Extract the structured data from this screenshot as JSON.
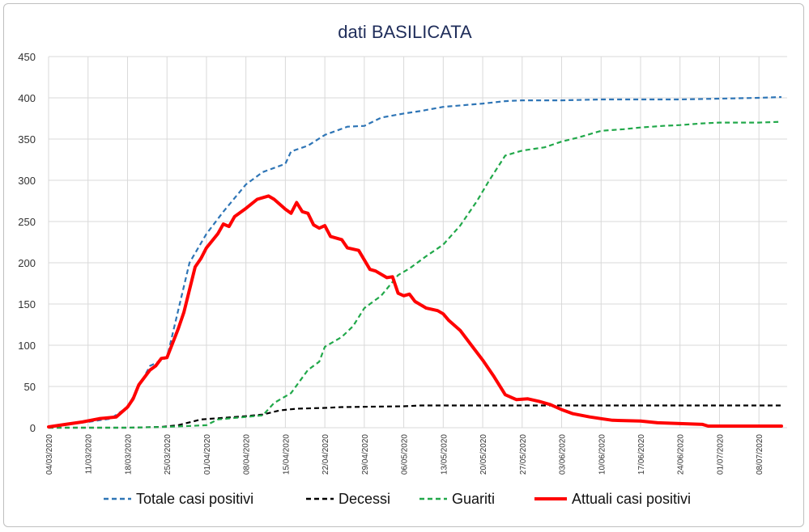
{
  "chart_data": {
    "type": "line",
    "title": "dati BASILICATA",
    "xlabel": "",
    "ylabel": "",
    "ylim": [
      0,
      450
    ],
    "yticks": [
      0,
      50,
      100,
      150,
      200,
      250,
      300,
      350,
      400,
      450
    ],
    "grid": true,
    "legend_position": "bottom",
    "x_start": "04/03/2020",
    "x_tick_labels": [
      "04/03/2020",
      "11/03/2020",
      "18/03/2020",
      "25/03/2020",
      "01/04/2020",
      "08/04/2020",
      "15/04/2020",
      "22/04/2020",
      "29/04/2020",
      "06/05/2020",
      "13/05/2020",
      "20/05/2020",
      "27/05/2020",
      "03/06/2020",
      "10/06/2020",
      "17/06/2020",
      "24/06/2020",
      "01/07/2020",
      "08/07/2020"
    ],
    "series": [
      {
        "name": "Totale casi positivi",
        "color": "#2e75b6",
        "style": "dashed",
        "values": [
          1,
          2,
          3,
          4,
          5,
          6,
          7,
          8,
          9,
          10,
          11,
          12,
          14,
          18,
          25,
          35,
          50,
          60,
          70,
          75,
          85,
          85,
          100,
          120,
          140,
          170,
          200,
          215,
          230,
          245,
          260,
          265,
          280,
          290,
          295,
          300,
          305,
          310,
          312,
          315,
          318,
          320,
          335,
          338,
          340,
          342,
          345,
          350,
          355,
          358,
          362,
          365,
          365,
          365,
          366,
          368,
          372,
          376,
          378,
          380,
          381,
          381,
          382,
          385,
          387,
          389,
          389,
          390,
          391,
          392,
          393,
          393,
          395,
          396,
          396,
          397,
          397,
          397,
          397,
          397,
          397,
          397,
          397,
          397,
          397,
          398,
          398,
          398,
          398,
          398,
          398,
          398,
          398,
          398,
          398,
          398,
          398,
          398,
          398,
          398,
          398,
          399,
          399,
          399,
          399,
          399,
          399,
          399,
          400,
          400,
          401,
          401
        ],
        "points": [
          [
            "04/03/2020",
            1
          ],
          [
            "08/03/2020",
            5
          ],
          [
            "11/03/2020",
            7
          ],
          [
            "15/03/2020",
            11
          ],
          [
            "18/03/2020",
            25
          ],
          [
            "22/03/2020",
            75
          ],
          [
            "25/03/2020",
            85
          ],
          [
            "29/03/2020",
            200
          ],
          [
            "01/04/2020",
            235
          ],
          [
            "04/04/2020",
            262
          ],
          [
            "08/04/2020",
            295
          ],
          [
            "11/04/2020",
            310
          ],
          [
            "15/04/2020",
            320
          ],
          [
            "16/04/2020",
            335
          ],
          [
            "19/04/2020",
            342
          ],
          [
            "22/04/2020",
            355
          ],
          [
            "26/04/2020",
            365
          ],
          [
            "29/04/2020",
            366
          ],
          [
            "02/05/2020",
            376
          ],
          [
            "06/05/2020",
            381
          ],
          [
            "09/05/2020",
            384
          ],
          [
            "13/05/2020",
            389
          ],
          [
            "20/05/2020",
            393
          ],
          [
            "24/05/2020",
            396
          ],
          [
            "27/05/2020",
            397
          ],
          [
            "03/06/2020",
            397
          ],
          [
            "10/06/2020",
            398
          ],
          [
            "17/06/2020",
            398
          ],
          [
            "24/06/2020",
            398
          ],
          [
            "01/07/2020",
            399
          ],
          [
            "08/07/2020",
            400
          ],
          [
            "12/07/2020",
            401
          ]
        ]
      },
      {
        "name": "Decessi",
        "color": "#000000",
        "style": "dashed",
        "points": [
          [
            "04/03/2020",
            0
          ],
          [
            "11/03/2020",
            0
          ],
          [
            "18/03/2020",
            0
          ],
          [
            "24/03/2020",
            1
          ],
          [
            "27/03/2020",
            3
          ],
          [
            "31/03/2020",
            10
          ],
          [
            "04/04/2020",
            12
          ],
          [
            "08/04/2020",
            14
          ],
          [
            "11/04/2020",
            16
          ],
          [
            "14/04/2020",
            21
          ],
          [
            "17/04/2020",
            23
          ],
          [
            "22/04/2020",
            24
          ],
          [
            "25/04/2020",
            25
          ],
          [
            "06/05/2020",
            26
          ],
          [
            "09/05/2020",
            27
          ],
          [
            "20/05/2020",
            27
          ],
          [
            "03/06/2020",
            27
          ],
          [
            "12/07/2020",
            27
          ]
        ]
      },
      {
        "name": "Guariti",
        "color": "#21a84a",
        "style": "dashed",
        "points": [
          [
            "04/03/2020",
            0
          ],
          [
            "11/03/2020",
            0
          ],
          [
            "18/03/2020",
            0
          ],
          [
            "25/03/2020",
            1
          ],
          [
            "01/04/2020",
            3
          ],
          [
            "03/04/2020",
            10
          ],
          [
            "08/04/2020",
            13
          ],
          [
            "11/04/2020",
            15
          ],
          [
            "13/04/2020",
            30
          ],
          [
            "16/04/2020",
            42
          ],
          [
            "19/04/2020",
            70
          ],
          [
            "21/04/2020",
            80
          ],
          [
            "22/04/2020",
            98
          ],
          [
            "25/04/2020",
            110
          ],
          [
            "27/04/2020",
            123
          ],
          [
            "29/04/2020",
            145
          ],
          [
            "02/05/2020",
            160
          ],
          [
            "05/05/2020",
            185
          ],
          [
            "07/05/2020",
            193
          ],
          [
            "10/05/2020",
            208
          ],
          [
            "13/05/2020",
            222
          ],
          [
            "16/05/2020",
            245
          ],
          [
            "19/05/2020",
            275
          ],
          [
            "21/05/2020",
            298
          ],
          [
            "24/05/2020",
            330
          ],
          [
            "27/05/2020",
            336
          ],
          [
            "31/05/2020",
            340
          ],
          [
            "03/06/2020",
            347
          ],
          [
            "06/06/2020",
            352
          ],
          [
            "10/06/2020",
            360
          ],
          [
            "14/06/2020",
            362
          ],
          [
            "17/06/2020",
            364
          ],
          [
            "21/06/2020",
            366
          ],
          [
            "24/06/2020",
            367
          ],
          [
            "28/06/2020",
            369
          ],
          [
            "01/07/2020",
            370
          ],
          [
            "05/07/2020",
            370
          ],
          [
            "08/07/2020",
            370
          ],
          [
            "12/07/2020",
            371
          ]
        ]
      },
      {
        "name": "Attuali casi positivi",
        "color": "#ff0000",
        "style": "solid",
        "points": [
          [
            "04/03/2020",
            1
          ],
          [
            "07/03/2020",
            4
          ],
          [
            "10/03/2020",
            7
          ],
          [
            "13/03/2020",
            11
          ],
          [
            "16/03/2020",
            13
          ],
          [
            "18/03/2020",
            25
          ],
          [
            "19/03/2020",
            35
          ],
          [
            "20/03/2020",
            52
          ],
          [
            "22/03/2020",
            70
          ],
          [
            "23/03/2020",
            75
          ],
          [
            "24/03/2020",
            84
          ],
          [
            "25/03/2020",
            85
          ],
          [
            "27/03/2020",
            120
          ],
          [
            "28/03/2020",
            140
          ],
          [
            "30/03/2020",
            195
          ],
          [
            "31/03/2020",
            205
          ],
          [
            "01/04/2020",
            218
          ],
          [
            "03/04/2020",
            235
          ],
          [
            "04/04/2020",
            247
          ],
          [
            "05/04/2020",
            244
          ],
          [
            "06/04/2020",
            256
          ],
          [
            "08/04/2020",
            266
          ],
          [
            "10/04/2020",
            277
          ],
          [
            "12/04/2020",
            281
          ],
          [
            "13/04/2020",
            277
          ],
          [
            "15/04/2020",
            265
          ],
          [
            "16/04/2020",
            260
          ],
          [
            "17/04/2020",
            273
          ],
          [
            "18/04/2020",
            262
          ],
          [
            "19/04/2020",
            260
          ],
          [
            "20/04/2020",
            246
          ],
          [
            "21/04/2020",
            242
          ],
          [
            "22/04/2020",
            245
          ],
          [
            "23/04/2020",
            232
          ],
          [
            "25/04/2020",
            228
          ],
          [
            "26/04/2020",
            218
          ],
          [
            "28/04/2020",
            215
          ],
          [
            "30/04/2020",
            192
          ],
          [
            "01/05/2020",
            190
          ],
          [
            "03/05/2020",
            182
          ],
          [
            "04/05/2020",
            183
          ],
          [
            "05/05/2020",
            163
          ],
          [
            "06/05/2020",
            160
          ],
          [
            "07/05/2020",
            162
          ],
          [
            "08/05/2020",
            153
          ],
          [
            "10/05/2020",
            145
          ],
          [
            "12/05/2020",
            142
          ],
          [
            "13/05/2020",
            138
          ],
          [
            "14/05/2020",
            130
          ],
          [
            "16/05/2020",
            118
          ],
          [
            "18/05/2020",
            100
          ],
          [
            "20/05/2020",
            82
          ],
          [
            "22/05/2020",
            62
          ],
          [
            "24/05/2020",
            40
          ],
          [
            "26/05/2020",
            34
          ],
          [
            "28/05/2020",
            35
          ],
          [
            "30/05/2020",
            32
          ],
          [
            "01/06/2020",
            28
          ],
          [
            "03/06/2020",
            22
          ],
          [
            "05/06/2020",
            17
          ],
          [
            "08/06/2020",
            13
          ],
          [
            "10/06/2020",
            11
          ],
          [
            "12/06/2020",
            9
          ],
          [
            "17/06/2020",
            8
          ],
          [
            "20/06/2020",
            6
          ],
          [
            "24/06/2020",
            5
          ],
          [
            "28/06/2020",
            4
          ],
          [
            "29/06/2020",
            2
          ],
          [
            "03/07/2020",
            2
          ],
          [
            "08/07/2020",
            2
          ],
          [
            "12/07/2020",
            2
          ]
        ]
      }
    ]
  }
}
